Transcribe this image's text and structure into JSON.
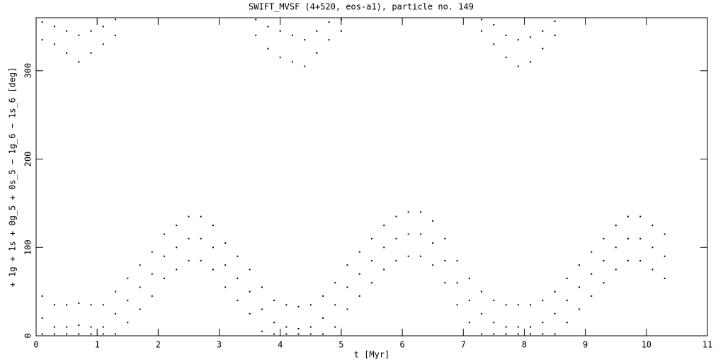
{
  "chart_data": {
    "type": "scatter",
    "title": "SWIFT_MVSF (4+520, eos-a1), particle no. 149",
    "x_label": "t [Myr]",
    "y_label": "+ 1g + 1s + 0g_5 + 0s_5 − 1g_6 − 1s_6 [deg]",
    "color": "#000000",
    "xlim": [
      0,
      11
    ],
    "xticks": [
      0,
      1,
      2,
      3,
      4,
      5,
      6,
      7,
      8,
      9,
      10,
      11
    ],
    "ylim": [
      0,
      360
    ],
    "yticks": [
      0,
      100,
      200,
      300
    ],
    "x": [
      0.1,
      0.1,
      0.1,
      0.3,
      0.3,
      0.3,
      0.5,
      0.5,
      0.5,
      0.7,
      0.7,
      0.7,
      0.9,
      0.9,
      0.9,
      1.1,
      1.1,
      1.1,
      1.3,
      1.3,
      1.3,
      1.5,
      1.5,
      1.5,
      1.7,
      1.7,
      1.7,
      1.9,
      1.9,
      1.9,
      2.1,
      2.1,
      2.1,
      2.3,
      2.3,
      2.3,
      2.5,
      2.5,
      2.5,
      2.7,
      2.7,
      2.7,
      2.9,
      2.9,
      2.9,
      3.1,
      3.1,
      3.1,
      3.3,
      3.3,
      3.3,
      3.5,
      3.5,
      3.5,
      3.7,
      3.7,
      3.7,
      3.9,
      3.9,
      3.9,
      4.1,
      4.1,
      4.1,
      4.3,
      4.3,
      4.3,
      4.5,
      4.5,
      4.5,
      4.7,
      4.7,
      4.7,
      4.9,
      4.9,
      4.9,
      5.1,
      5.1,
      5.1,
      5.3,
      5.3,
      5.3,
      5.5,
      5.5,
      5.5,
      5.7,
      5.7,
      5.7,
      5.9,
      5.9,
      5.9,
      6.1,
      6.1,
      6.1,
      6.3,
      6.3,
      6.3,
      6.5,
      6.5,
      6.5,
      6.7,
      6.7,
      6.7,
      6.9,
      6.9,
      6.9,
      7.1,
      7.1,
      7.1,
      7.3,
      7.3,
      7.3,
      7.5,
      7.5,
      7.5,
      7.7,
      7.7,
      7.7,
      7.9,
      7.9,
      7.9,
      8.1,
      8.1,
      8.1,
      8.3,
      8.3,
      8.3,
      8.5,
      8.5,
      8.5,
      8.7,
      8.7,
      8.7,
      8.9,
      8.9,
      8.9,
      9.1,
      9.1,
      9.1,
      9.3,
      9.3,
      9.3,
      9.5,
      9.5,
      9.5,
      9.7,
      9.7,
      9.7,
      9.9,
      9.9,
      9.9,
      10.1,
      10.1,
      10.1,
      10.3,
      10.3,
      10.3,
      0.1,
      0.1,
      0.3,
      0.3,
      0.5,
      0.5,
      0.7,
      0.7,
      0.9,
      0.9,
      1.1,
      1.1,
      1.3,
      1.3,
      3.6,
      3.6,
      3.8,
      3.8,
      4.0,
      4.0,
      4.2,
      4.2,
      4.4,
      4.4,
      4.6,
      4.6,
      4.8,
      4.8,
      5.0,
      5.0,
      7.3,
      7.3,
      7.5,
      7.5,
      7.7,
      7.7,
      7.9,
      7.9,
      8.1,
      8.1,
      8.3,
      8.3,
      8.5,
      8.5
    ],
    "values": [
      2,
      20,
      45,
      2,
      10,
      35,
      2,
      10,
      35,
      2,
      12,
      37,
      2,
      10,
      35,
      2,
      10,
      35,
      2,
      25,
      50,
      15,
      40,
      65,
      30,
      55,
      80,
      45,
      70,
      95,
      65,
      90,
      115,
      75,
      100,
      125,
      85,
      110,
      135,
      85,
      110,
      135,
      75,
      100,
      125,
      55,
      80,
      105,
      40,
      65,
      90,
      25,
      50,
      75,
      5,
      30,
      55,
      2,
      15,
      40,
      2,
      10,
      35,
      2,
      8,
      33,
      2,
      10,
      35,
      2,
      20,
      45,
      10,
      35,
      60,
      30,
      55,
      80,
      45,
      70,
      95,
      60,
      85,
      110,
      75,
      100,
      125,
      85,
      110,
      135,
      90,
      115,
      140,
      90,
      115,
      140,
      80,
      105,
      130,
      60,
      85,
      110,
      35,
      60,
      85,
      15,
      40,
      65,
      2,
      25,
      50,
      2,
      15,
      40,
      2,
      10,
      35,
      2,
      10,
      35,
      2,
      10,
      35,
      2,
      15,
      40,
      2,
      25,
      50,
      15,
      40,
      65,
      30,
      55,
      80,
      45,
      70,
      95,
      60,
      85,
      110,
      75,
      100,
      125,
      85,
      110,
      135,
      85,
      110,
      135,
      75,
      100,
      125,
      65,
      90,
      115,
      335,
      355,
      330,
      350,
      320,
      345,
      310,
      340,
      320,
      345,
      330,
      350,
      340,
      358,
      340,
      358,
      325,
      350,
      315,
      345,
      310,
      340,
      305,
      335,
      320,
      345,
      335,
      355,
      345,
      358,
      345,
      358,
      330,
      352,
      315,
      340,
      305,
      335,
      310,
      338,
      325,
      345,
      340,
      356
    ]
  }
}
